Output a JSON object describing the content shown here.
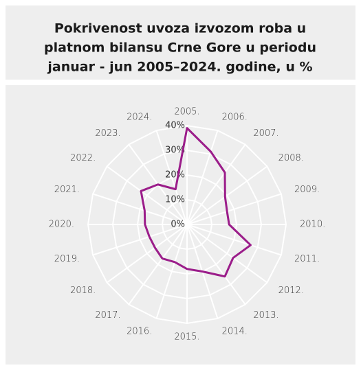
{
  "chart_data": {
    "type": "radar",
    "title": [
      "Pokrivenost uvoza izvozom roba u",
      "platnom bilansu Crne Gore u periodu",
      "januar - jun 2005–2024. godine, u %"
    ],
    "categories": [
      "2005.",
      "2006.",
      "2007.",
      "2008.",
      "2009.",
      "2010.",
      "2011.",
      "2012.",
      "2013.",
      "2014.",
      "2015.",
      "2016.",
      "2017.",
      "2018.",
      "2019.",
      "2020.",
      "2021.",
      "2022.",
      "2023.",
      "2024."
    ],
    "values": [
      39,
      31,
      26,
      19,
      17,
      17,
      27,
      23,
      26,
      20,
      18,
      16,
      17,
      16,
      16,
      17,
      18,
      23,
      20,
      15
    ],
    "color": "#9b1d8a",
    "ylim": [
      0,
      40
    ],
    "yticks": [
      {
        "value": 0,
        "label": "0%"
      },
      {
        "value": 10,
        "label": "10%"
      },
      {
        "value": 20,
        "label": "20%"
      },
      {
        "value": 30,
        "label": "30%"
      },
      {
        "value": 40,
        "label": "40%"
      }
    ],
    "grid": true
  }
}
